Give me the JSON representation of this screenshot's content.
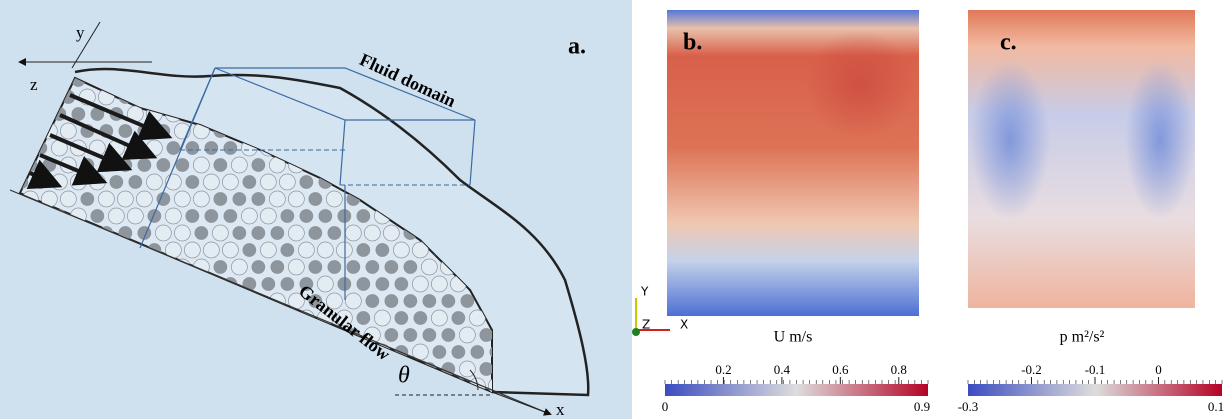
{
  "panel_a": {
    "label": "a.",
    "axis_y": "y",
    "axis_z": "z",
    "axis_x": "x",
    "fluid_label": "Fluid domain",
    "granular_label": "Granular flow",
    "angle": "θ"
  },
  "panel_b": {
    "label": "b.",
    "triad": [
      "Y",
      "Z",
      "X"
    ],
    "caption": "U m/s",
    "colorbar": {
      "min": 0,
      "max": 0.9,
      "ticks": [
        0.2,
        0.4,
        0.6,
        0.8
      ]
    }
  },
  "panel_c": {
    "label": "c.",
    "caption": "p m²/s²",
    "colorbar": {
      "min": -0.3,
      "max": 0.1,
      "ticks": [
        -0.2,
        -0.1,
        0
      ]
    }
  }
}
